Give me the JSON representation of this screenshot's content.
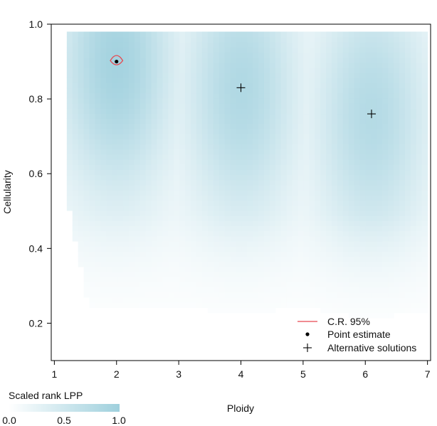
{
  "chart_data": {
    "type": "heatmap",
    "title": "",
    "xlabel": "Ploidy",
    "ylabel": "Cellularity",
    "xlim": [
      0.95,
      7.05
    ],
    "ylim": [
      0.1,
      1.0
    ],
    "x_ticks": [
      "1",
      "2",
      "3",
      "4",
      "5",
      "6",
      "7"
    ],
    "y_ticks": [
      "0.2",
      "0.4",
      "0.6",
      "0.8",
      "1.0"
    ],
    "heatmap": {
      "value_name": "Scaled rank LPP",
      "value_range": [
        0.0,
        1.0
      ],
      "high_value_regions": [
        {
          "ploidy": 2.0,
          "cellularity": 0.9,
          "value": 1.0
        },
        {
          "ploidy": 4.0,
          "cellularity": 0.83,
          "value": 0.85
        },
        {
          "ploidy": 6.1,
          "cellularity": 0.76,
          "value": 0.8
        }
      ]
    },
    "point_estimate": {
      "ploidy": 2.0,
      "cellularity": 0.9
    },
    "alternative_solutions": [
      {
        "ploidy": 4.0,
        "cellularity": 0.83
      },
      {
        "ploidy": 6.1,
        "cellularity": 0.76
      }
    ],
    "credible_region": {
      "level": "95%",
      "color": "#e8474f",
      "ploidy_range": [
        1.9,
        2.1
      ],
      "cellularity_range": [
        0.89,
        0.915
      ]
    },
    "legend": {
      "position": "bottom-right",
      "entries": [
        "C.R. 95%",
        "Point estimate",
        "Alternative solutions"
      ]
    },
    "colorbar": {
      "title": "Scaled rank LPP",
      "labels": [
        "0.0",
        "0.5",
        "1.0"
      ],
      "colors": [
        "#ffffff",
        "#9fd0dd"
      ]
    }
  }
}
